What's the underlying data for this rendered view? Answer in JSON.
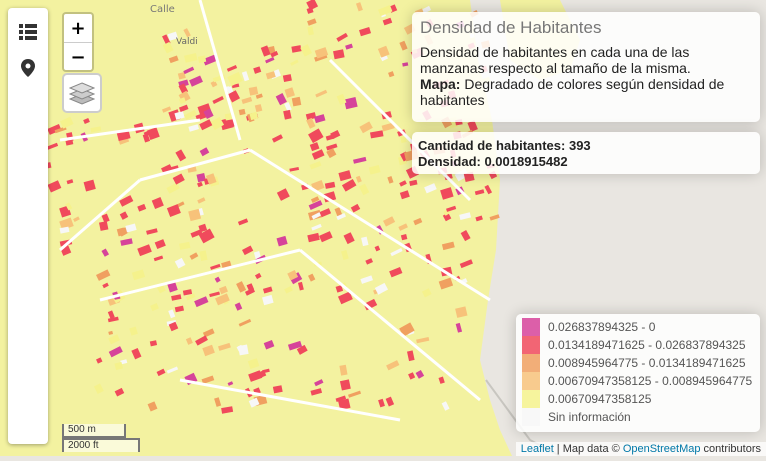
{
  "map": {
    "street_labels": [
      "Calle",
      "Valdi"
    ],
    "colors": {
      "water": "#e9e6e1",
      "background": "#f3f2a0",
      "class_0": "#d6439a",
      "class_1": "#f04a5c",
      "class_2": "#f0a060",
      "class_3": "#f7c27a",
      "class_4": "#f5f28c",
      "no_data": "#f7f7f7"
    }
  },
  "controls": {
    "zoom_in": "+",
    "zoom_out": "−",
    "sidebar_icons": [
      "list-icon",
      "map-pin-icon"
    ],
    "layers_icon": "layers-icon"
  },
  "info": {
    "title": "Densidad de Habitantes",
    "description": "Densidad de habitantes en cada una de las manzanas respecto al tamaño de la misma.",
    "map_label": "Mapa:",
    "map_text": " Degradado de colores según densidad de habitantes"
  },
  "stats": {
    "habitantes": "Cantidad de habitantes: 393",
    "densidad": "Densidad: 0.0018915482"
  },
  "legend": [
    {
      "label": "0.026837894325 - 0",
      "color": "#d6439a"
    },
    {
      "label": "0.0134189471625 - 0.026837894325",
      "color": "#f04a5c"
    },
    {
      "label": "0.008945964775 - 0.0134189471625",
      "color": "#f0a060"
    },
    {
      "label": "0.00670947358125 - 0.008945964775",
      "color": "#f7c27a"
    },
    {
      "label": "0.00670947358125",
      "color": "#f5f28c"
    },
    {
      "label": "Sin información",
      "color": "#f7f7f7"
    }
  ],
  "scale": {
    "metric": "500 m",
    "imperial": "2000 ft"
  },
  "attribution": {
    "leaflet": "Leaflet",
    "sep": " | Map data © ",
    "osm": "OpenStreetMap",
    "rest": " contributors"
  }
}
